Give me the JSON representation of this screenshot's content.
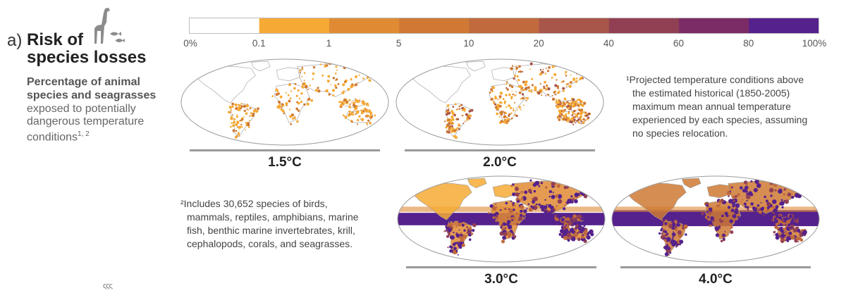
{
  "panel": {
    "letter": "a)",
    "title_line1": "Risk of",
    "title_line2": "species losses",
    "subtitle_bold_1": "Percentage of animal",
    "subtitle_bold_2": "species and seagrasses",
    "subtitle_line1": "exposed to potentially",
    "subtitle_line2": "dangerous temperature",
    "subtitle_line3": "conditions",
    "subtitle_superscript": "1, 2",
    "icon": "giraffe-and-fish-icon"
  },
  "colorbar": {
    "labels": [
      "0%",
      "0.1",
      "1",
      "5",
      "10",
      "20",
      "40",
      "60",
      "80",
      "100%"
    ],
    "colors": [
      "#ffffff",
      "#f6aa35",
      "#e08b34",
      "#cf7934",
      "#c06a3d",
      "#a8554a",
      "#914054",
      "#7b2b66",
      "#55218c"
    ]
  },
  "maps": [
    {
      "label": "1.5°C",
      "intensity": 1
    },
    {
      "label": "2.0°C",
      "intensity": 2
    },
    {
      "label": "3.0°C",
      "intensity": 3
    },
    {
      "label": "4.0°C",
      "intensity": 4
    }
  ],
  "footnotes": {
    "fn1_line1": "¹Projected temperature conditions above",
    "fn1_line2": "the estimated historical (1850-2005)",
    "fn1_line3": "maximum mean annual temperature",
    "fn1_line4": "experienced by each species, assuming",
    "fn1_line5": "no species relocation.",
    "fn2_line1": "²Includes 30,652 species of birds,",
    "fn2_line2": "mammals, reptiles, amphibians, marine",
    "fn2_line3": "fish, benthic marine invertebrates, krill,",
    "fn2_line4": "cephalopods, corals, and seagrasses."
  },
  "stray_mark": "ςςς"
}
